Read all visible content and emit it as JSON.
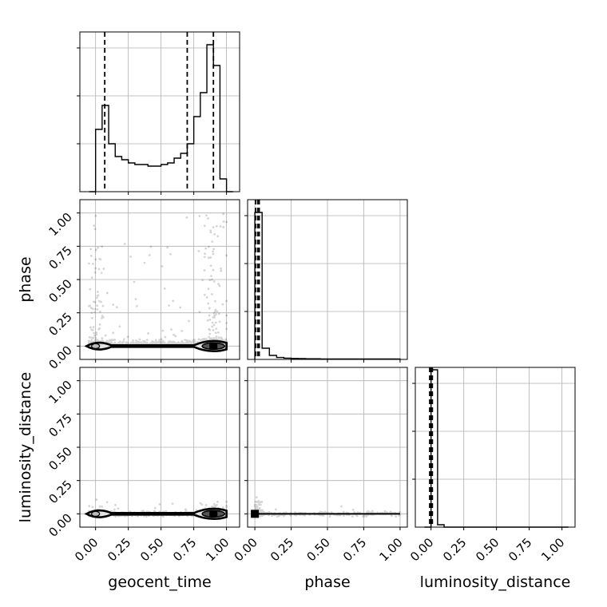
{
  "chart_data": {
    "type": "corner",
    "parameters": [
      "geocent_time",
      "phase",
      "luminosity_distance"
    ],
    "xlabels": [
      "geocent_time",
      "phase",
      "luminosity_distance"
    ],
    "ylabels": [
      "phase",
      "luminosity_distance"
    ],
    "tick_values": [
      0.0,
      0.25,
      0.5,
      0.75,
      1.0
    ],
    "tick_labels": [
      "0.00",
      "0.25",
      "0.50",
      "0.75",
      "1.00"
    ],
    "grid": true,
    "colors": {
      "line": "#000000",
      "grid": "#b0b0b0",
      "points": "#000000"
    },
    "histograms": [
      {
        "parameter": "geocent_time",
        "xlim": [
          -0.12,
          1.1
        ],
        "bin_edges": [
          -0.05,
          0.0,
          0.05,
          0.1,
          0.15,
          0.2,
          0.25,
          0.3,
          0.35,
          0.4,
          0.45,
          0.5,
          0.55,
          0.6,
          0.65,
          0.7,
          0.75,
          0.8,
          0.85,
          0.9,
          0.95,
          1.0,
          1.05
        ],
        "counts": [
          0.0,
          0.39,
          0.54,
          0.3,
          0.22,
          0.2,
          0.18,
          0.17,
          0.17,
          0.16,
          0.16,
          0.17,
          0.18,
          0.21,
          0.24,
          0.3,
          0.47,
          0.62,
          0.92,
          0.79,
          0.08,
          0.0
        ],
        "ylim": [
          0.0,
          1.0
        ],
        "quantiles": [
          0.07,
          0.7,
          0.9
        ],
        "yticks": [
          0.3,
          0.6,
          0.9
        ]
      },
      {
        "parameter": "phase",
        "xlim": [
          -0.05,
          1.05
        ],
        "bin_edges": [
          0.0,
          0.05,
          0.1,
          0.15,
          0.2,
          0.25,
          0.3,
          0.35,
          0.4,
          0.45,
          0.5,
          0.55,
          0.6,
          0.65,
          0.7,
          0.75,
          0.8,
          0.85,
          0.9,
          0.95,
          1.0
        ],
        "counts": [
          0.92,
          0.07,
          0.025,
          0.012,
          0.008,
          0.006,
          0.005,
          0.004,
          0.004,
          0.003,
          0.003,
          0.003,
          0.003,
          0.003,
          0.003,
          0.003,
          0.003,
          0.003,
          0.003,
          0.003
        ],
        "ylim": [
          0.0,
          1.0
        ],
        "quantiles": [
          0.005,
          0.02,
          0.03
        ],
        "yticks": [
          0.3,
          0.6,
          0.9
        ]
      },
      {
        "parameter": "luminosity_distance",
        "xlim": [
          -0.12,
          1.1
        ],
        "bin_edges": [
          -0.05,
          0.0,
          0.05,
          0.1,
          0.15,
          0.2,
          0.25,
          0.3,
          0.35,
          0.4,
          0.45,
          0.5,
          0.55,
          0.6,
          0.65,
          0.7,
          0.75,
          0.8,
          0.85,
          0.9,
          0.95,
          1.0,
          1.05
        ],
        "counts": [
          0.0,
          0.985,
          0.015,
          0.0,
          0.0,
          0.0,
          0.0,
          0.0,
          0.0,
          0.0,
          0.0,
          0.0,
          0.0,
          0.0,
          0.0,
          0.0,
          0.0,
          0.0,
          0.0,
          0.0,
          0.0,
          0.0
        ],
        "ylim": [
          0.0,
          1.0
        ],
        "quantiles": [
          -0.01,
          0.0,
          0.01
        ],
        "yticks": [
          0.3,
          0.6,
          0.9
        ]
      }
    ],
    "panels_2d": [
      {
        "x": "geocent_time",
        "y": "phase",
        "xlim": [
          -0.12,
          1.1
        ],
        "ylim": [
          -0.1,
          1.1
        ],
        "samples": 1800,
        "contour_levels": [
          0.12,
          0.55
        ]
      },
      {
        "x": "geocent_time",
        "y": "luminosity_distance",
        "xlim": [
          -0.12,
          1.1
        ],
        "ylim": [
          -0.1,
          1.1
        ],
        "samples": 1600,
        "contour_levels": [
          0.12,
          0.55
        ]
      },
      {
        "x": "phase",
        "y": "luminosity_distance",
        "xlim": [
          -0.05,
          1.05
        ],
        "ylim": [
          -0.1,
          1.1
        ],
        "samples": 1400,
        "contour_levels": [
          0.12,
          0.55
        ]
      }
    ]
  }
}
